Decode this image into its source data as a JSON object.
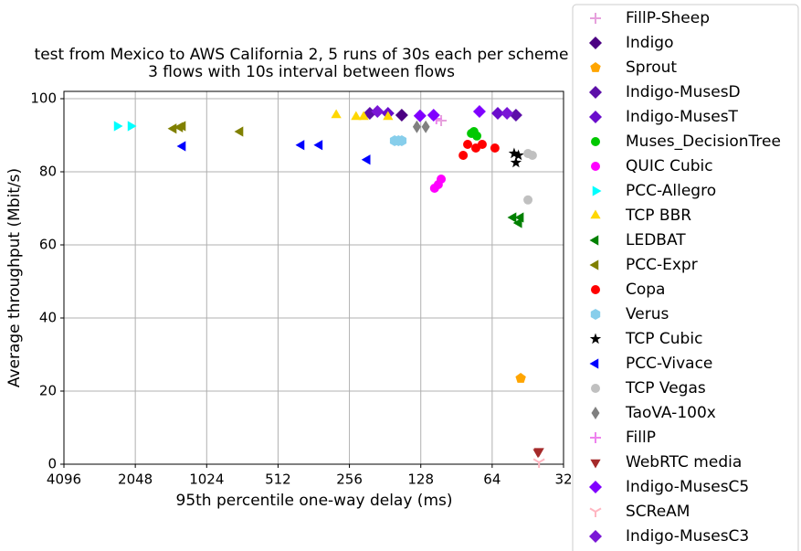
{
  "chart_data": {
    "type": "scatter",
    "title": [
      "test from Mexico to AWS California 2, 5 runs of 30s each per scheme",
      "3 flows with 10s interval between flows"
    ],
    "xlabel": "95th percentile one-way delay (ms)",
    "ylabel": "Average throughput (Mbit/s)",
    "xscale": "log",
    "xlim": [
      4096,
      32
    ],
    "xticks": [
      4096,
      2048,
      1024,
      512,
      256,
      128,
      64,
      32
    ],
    "ylim": [
      0,
      102
    ],
    "yticks": [
      0,
      20,
      40,
      60,
      80,
      100
    ],
    "grid": true,
    "legend": "upper right",
    "series": [
      {
        "name": "FillP-Sheep",
        "color": "#e6a0dc",
        "marker": "plus",
        "x": [
          105
        ],
        "values": [
          94
        ]
      },
      {
        "name": "Indigo",
        "color": "#4b0082",
        "marker": "diamond",
        "x": [
          154
        ],
        "values": [
          95.5
        ]
      },
      {
        "name": "Sprout",
        "color": "#ffa500",
        "marker": "pentagon",
        "x": [
          48.5
        ],
        "values": [
          23.5
        ]
      },
      {
        "name": "Indigo-MusesD",
        "color": "#5c0fa8",
        "marker": "diamond",
        "x": [
          210,
          50.8
        ],
        "values": [
          96,
          95.5
        ]
      },
      {
        "name": "Indigo-MusesT",
        "color": "#6a0dcc",
        "marker": "diamond",
        "x": [
          176,
          60.6
        ],
        "values": [
          96,
          96
        ]
      },
      {
        "name": "Muses_DecisionTree",
        "color": "#00c800",
        "marker": "circle",
        "x": [
          78.3,
          74.3,
          76.4
        ],
        "values": [
          90.5,
          89.8,
          91
        ]
      },
      {
        "name": "QUIC Cubic",
        "color": "#ff00ff",
        "marker": "circle",
        "x": [
          112,
          108,
          105
        ],
        "values": [
          75.5,
          76.5,
          78
        ]
      },
      {
        "name": "PCC-Allegro",
        "color": "#00ffff",
        "marker": "tri-right",
        "x": [
          2448,
          2143
        ],
        "values": [
          92.5,
          92.5
        ]
      },
      {
        "name": "TCP BBR",
        "color": "#ffd700",
        "marker": "tri-up",
        "x": [
          291,
          240,
          223,
          176
        ],
        "values": [
          95.5,
          95,
          95,
          95
        ]
      },
      {
        "name": "LEDBAT",
        "color": "#008000",
        "marker": "tri-left",
        "x": [
          52.1,
          48.5,
          49.3
        ],
        "values": [
          67.5,
          67.5,
          66
        ]
      },
      {
        "name": "PCC-Expr",
        "color": "#808000",
        "marker": "tri-left",
        "x": [
          1412,
          1328,
          1292,
          739
        ],
        "values": [
          91.8,
          92.2,
          92.5,
          91
        ]
      },
      {
        "name": "Copa",
        "color": "#ff0000",
        "marker": "circle",
        "x": [
          81.2,
          84.8,
          75,
          70.5,
          62.3
        ],
        "values": [
          87.5,
          84.5,
          86.5,
          87.5,
          86.5
        ]
      },
      {
        "name": "Verus",
        "color": "#87ceeb",
        "marker": "hexagon",
        "x": [
          165,
          159,
          154
        ],
        "values": [
          88.5,
          88.5,
          88.5
        ]
      },
      {
        "name": "TCP Cubic",
        "color": "#000000",
        "marker": "star",
        "x": [
          51.7,
          49.6,
          50.8
        ],
        "values": [
          85,
          84.5,
          82.5
        ]
      },
      {
        "name": "PCC-Vivace",
        "color": "#0000ff",
        "marker": "tri-left",
        "x": [
          1292,
          408,
          342,
          215
        ],
        "values": [
          87,
          87.3,
          87.3,
          83.3
        ]
      },
      {
        "name": "TCP Vegas",
        "color": "#c0c0c0",
        "marker": "circle",
        "x": [
          45.2,
          43.3,
          45.2
        ],
        "values": [
          85,
          84.5,
          72.3
        ]
      },
      {
        "name": "TaoVA-100x",
        "color": "#808080",
        "marker": "thin-diamond",
        "x": [
          133,
          122
        ],
        "values": [
          92.3,
          92.3
        ]
      },
      {
        "name": "FillP",
        "color": "#ee82ee",
        "marker": "plus",
        "x": [
          110
        ],
        "values": [
          94.5
        ]
      },
      {
        "name": "WebRTC media",
        "color": "#a52a2a",
        "marker": "tri-down",
        "x": [
          41,
          40.6
        ],
        "values": [
          3.3,
          3.6
        ]
      },
      {
        "name": "Indigo-MusesC5",
        "color": "#8000ff",
        "marker": "diamond",
        "x": [
          129,
          113,
          72.4
        ],
        "values": [
          95.3,
          95.5,
          96.5
        ]
      },
      {
        "name": "SCReAM",
        "color": "#ffb6c1",
        "marker": "tri-y",
        "x": [
          40.6
        ],
        "values": [
          0.5
        ]
      },
      {
        "name": "Indigo-MusesC3",
        "color": "#7a17d6",
        "marker": "diamond",
        "x": [
          195,
          55.4
        ],
        "values": [
          96.5,
          96
        ]
      }
    ]
  }
}
